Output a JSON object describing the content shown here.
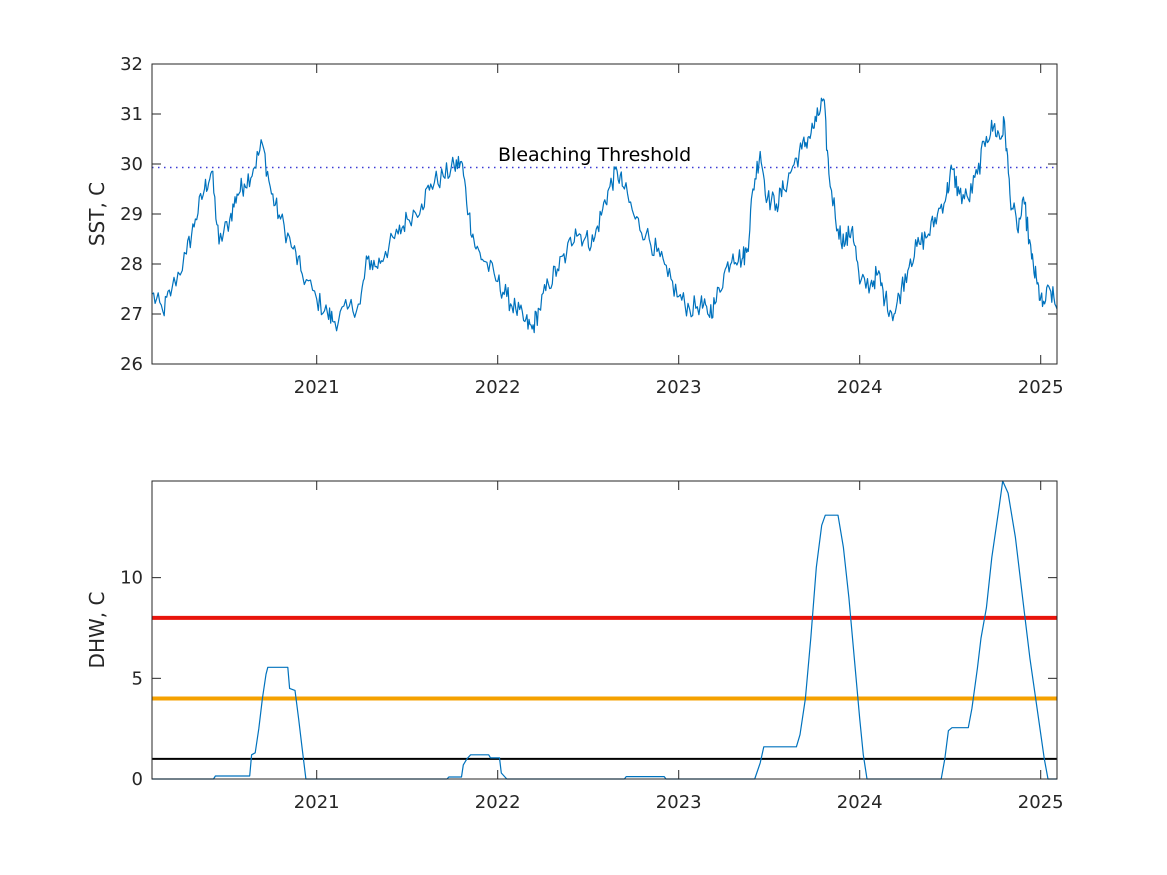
{
  "chart_data": [
    {
      "type": "line",
      "ylabel": "SST, C",
      "xlabel": "",
      "xlim": [
        2020.09,
        2025.09
      ],
      "ylim": [
        26,
        32
      ],
      "xticks": [
        2021,
        2022,
        2023,
        2024,
        2025
      ],
      "xtick_labels": [
        "2021",
        "2022",
        "2023",
        "2024",
        "2025"
      ],
      "yticks": [
        26,
        27,
        28,
        29,
        30,
        31,
        32
      ],
      "ytick_labels": [
        "26",
        "27",
        "28",
        "29",
        "30",
        "31",
        "32"
      ],
      "threshold": {
        "label": "Bleaching Threshold",
        "value": 29.93,
        "style": "dotted",
        "color": "#3a3ad6"
      },
      "series": [
        {
          "color": "#0072BD",
          "points": [
            [
              2020.09,
              27.4
            ],
            [
              2020.15,
              27.05
            ],
            [
              2020.2,
              27.5
            ],
            [
              2020.28,
              28.2
            ],
            [
              2020.33,
              28.9
            ],
            [
              2020.38,
              29.5
            ],
            [
              2020.42,
              29.85
            ],
            [
              2020.46,
              28.4
            ],
            [
              2020.52,
              28.9
            ],
            [
              2020.56,
              29.4
            ],
            [
              2020.6,
              29.6
            ],
            [
              2020.65,
              29.9
            ],
            [
              2020.7,
              30.4
            ],
            [
              2020.75,
              29.4
            ],
            [
              2020.8,
              28.9
            ],
            [
              2020.87,
              28.3
            ],
            [
              2020.92,
              27.8
            ],
            [
              2021.0,
              27.3
            ],
            [
              2021.06,
              27.0
            ],
            [
              2021.1,
              26.85
            ],
            [
              2021.17,
              27.1
            ],
            [
              2021.24,
              27.2
            ],
            [
              2021.28,
              28.1
            ],
            [
              2021.33,
              27.95
            ],
            [
              2021.38,
              28.25
            ],
            [
              2021.45,
              28.6
            ],
            [
              2021.5,
              28.9
            ],
            [
              2021.58,
              29.2
            ],
            [
              2021.63,
              29.6
            ],
            [
              2021.7,
              29.75
            ],
            [
              2021.76,
              29.95
            ],
            [
              2021.8,
              30.05
            ],
            [
              2021.84,
              29.0
            ],
            [
              2021.88,
              28.3
            ],
            [
              2021.93,
              28.05
            ],
            [
              2022.0,
              27.65
            ],
            [
              2022.05,
              27.35
            ],
            [
              2022.1,
              27.1
            ],
            [
              2022.15,
              26.85
            ],
            [
              2022.19,
              26.7
            ],
            [
              2022.23,
              27.1
            ],
            [
              2022.28,
              27.6
            ],
            [
              2022.33,
              27.9
            ],
            [
              2022.38,
              28.2
            ],
            [
              2022.43,
              28.7
            ],
            [
              2022.48,
              28.5
            ],
            [
              2022.53,
              28.45
            ],
            [
              2022.58,
              29.1
            ],
            [
              2022.62,
              29.55
            ],
            [
              2022.66,
              29.85
            ],
            [
              2022.7,
              29.5
            ],
            [
              2022.76,
              28.9
            ],
            [
              2022.82,
              28.6
            ],
            [
              2022.88,
              28.25
            ],
            [
              2022.94,
              27.75
            ],
            [
              2023.0,
              27.35
            ],
            [
              2023.06,
              27.1
            ],
            [
              2023.12,
              27.2
            ],
            [
              2023.16,
              27.0
            ],
            [
              2023.2,
              27.2
            ],
            [
              2023.25,
              27.8
            ],
            [
              2023.3,
              28.2
            ],
            [
              2023.35,
              28.1
            ],
            [
              2023.38,
              28.3
            ],
            [
              2023.41,
              29.5
            ],
            [
              2023.45,
              30.25
            ],
            [
              2023.49,
              29.3
            ],
            [
              2023.54,
              29.2
            ],
            [
              2023.58,
              29.5
            ],
            [
              2023.63,
              29.95
            ],
            [
              2023.68,
              30.3
            ],
            [
              2023.72,
              30.55
            ],
            [
              2023.76,
              30.85
            ],
            [
              2023.8,
              31.3
            ],
            [
              2023.83,
              29.8
            ],
            [
              2023.88,
              28.7
            ],
            [
              2023.92,
              28.4
            ],
            [
              2023.96,
              28.75
            ],
            [
              2024.0,
              27.6
            ],
            [
              2024.06,
              27.6
            ],
            [
              2024.1,
              27.8
            ],
            [
              2024.14,
              27.3
            ],
            [
              2024.19,
              27.0
            ],
            [
              2024.23,
              27.5
            ],
            [
              2024.28,
              28.1
            ],
            [
              2024.33,
              28.4
            ],
            [
              2024.38,
              28.6
            ],
            [
              2024.43,
              29.0
            ],
            [
              2024.48,
              29.4
            ],
            [
              2024.51,
              29.9
            ],
            [
              2024.55,
              29.4
            ],
            [
              2024.6,
              29.3
            ],
            [
              2024.65,
              29.8
            ],
            [
              2024.7,
              30.55
            ],
            [
              2024.74,
              30.75
            ],
            [
              2024.78,
              30.5
            ],
            [
              2024.8,
              30.85
            ],
            [
              2024.83,
              29.4
            ],
            [
              2024.87,
              28.7
            ],
            [
              2024.91,
              29.2
            ],
            [
              2024.95,
              28.1
            ],
            [
              2024.98,
              27.6
            ],
            [
              2025.01,
              27.15
            ],
            [
              2025.05,
              27.5
            ],
            [
              2025.09,
              27.1
            ]
          ]
        }
      ]
    },
    {
      "type": "line",
      "ylabel": "DHW, C",
      "xlabel": "",
      "xlim": [
        2020.09,
        2025.09
      ],
      "ylim": [
        0,
        14.8
      ],
      "xticks": [
        2021,
        2022,
        2023,
        2024,
        2025
      ],
      "xtick_labels": [
        "2021",
        "2022",
        "2023",
        "2024",
        "2025"
      ],
      "yticks": [
        0,
        5,
        10
      ],
      "ytick_labels": [
        "0",
        "5",
        "10"
      ],
      "reference_lines": [
        {
          "value": 8,
          "color": "#e8140c",
          "width": 4
        },
        {
          "value": 4,
          "color": "#f5a100",
          "width": 4
        },
        {
          "value": 1,
          "color": "#000000",
          "width": 2
        }
      ],
      "series": [
        {
          "color": "#0072BD",
          "points": [
            [
              2020.09,
              0
            ],
            [
              2020.43,
              0
            ],
            [
              2020.44,
              0.15
            ],
            [
              2020.63,
              0.15
            ],
            [
              2020.64,
              1.2
            ],
            [
              2020.66,
              1.3
            ],
            [
              2020.68,
              2.5
            ],
            [
              2020.7,
              4.0
            ],
            [
              2020.72,
              5.2
            ],
            [
              2020.73,
              5.55
            ],
            [
              2020.84,
              5.55
            ],
            [
              2020.85,
              4.5
            ],
            [
              2020.88,
              4.4
            ],
            [
              2020.9,
              3.0
            ],
            [
              2020.92,
              1.5
            ],
            [
              2020.94,
              0
            ],
            [
              2021.72,
              0
            ],
            [
              2021.73,
              0.1
            ],
            [
              2021.8,
              0.1
            ],
            [
              2021.81,
              0.7
            ],
            [
              2021.83,
              1.0
            ],
            [
              2021.85,
              1.2
            ],
            [
              2021.95,
              1.2
            ],
            [
              2021.96,
              1.05
            ],
            [
              2022.01,
              1.05
            ],
            [
              2022.02,
              0.3
            ],
            [
              2022.05,
              0
            ],
            [
              2022.7,
              0
            ],
            [
              2022.71,
              0.12
            ],
            [
              2022.92,
              0.12
            ],
            [
              2022.93,
              0
            ],
            [
              2023.42,
              0
            ],
            [
              2023.45,
              0.8
            ],
            [
              2023.47,
              1.6
            ],
            [
              2023.65,
              1.6
            ],
            [
              2023.67,
              2.2
            ],
            [
              2023.7,
              4.0
            ],
            [
              2023.73,
              7.0
            ],
            [
              2023.76,
              10.5
            ],
            [
              2023.79,
              12.6
            ],
            [
              2023.81,
              13.1
            ],
            [
              2023.88,
              13.1
            ],
            [
              2023.91,
              11.5
            ],
            [
              2023.94,
              9.0
            ],
            [
              2023.97,
              6.0
            ],
            [
              2024.0,
              3.0
            ],
            [
              2024.02,
              1.2
            ],
            [
              2024.04,
              0
            ],
            [
              2024.45,
              0
            ],
            [
              2024.47,
              1.0
            ],
            [
              2024.49,
              2.4
            ],
            [
              2024.51,
              2.55
            ],
            [
              2024.6,
              2.55
            ],
            [
              2024.62,
              3.5
            ],
            [
              2024.65,
              5.5
            ],
            [
              2024.67,
              7.0
            ],
            [
              2024.7,
              8.5
            ],
            [
              2024.73,
              11.0
            ],
            [
              2024.77,
              13.5
            ],
            [
              2024.79,
              14.8
            ],
            [
              2024.82,
              14.2
            ],
            [
              2024.86,
              12.0
            ],
            [
              2024.9,
              9.0
            ],
            [
              2024.94,
              6.0
            ],
            [
              2024.98,
              3.5
            ],
            [
              2025.02,
              1.0
            ],
            [
              2025.04,
              0
            ],
            [
              2025.09,
              0
            ]
          ]
        }
      ]
    }
  ]
}
